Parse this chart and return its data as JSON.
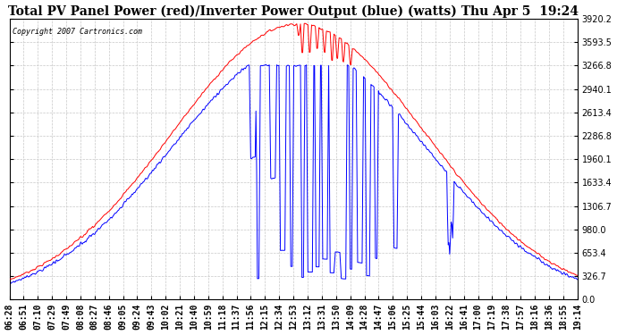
{
  "title": "Total PV Panel Power (red)/Inverter Power Output (blue) (watts) Thu Apr 5  19:24",
  "copyright": "Copyright 2007 Cartronics.com",
  "ymin": 0.0,
  "ymax": 3920.2,
  "yticks": [
    0.0,
    326.7,
    653.4,
    980.0,
    1306.7,
    1633.4,
    1960.1,
    2286.8,
    2613.4,
    2940.1,
    3266.8,
    3593.5,
    3920.2
  ],
  "xtick_labels": [
    "06:28",
    "06:51",
    "07:10",
    "07:29",
    "07:49",
    "08:08",
    "08:27",
    "08:46",
    "09:05",
    "09:24",
    "09:43",
    "10:02",
    "10:21",
    "10:40",
    "10:59",
    "11:18",
    "11:37",
    "11:56",
    "12:15",
    "12:34",
    "12:53",
    "13:12",
    "13:31",
    "13:50",
    "14:09",
    "14:28",
    "14:47",
    "15:06",
    "15:25",
    "15:44",
    "16:03",
    "16:22",
    "16:41",
    "17:00",
    "17:19",
    "17:38",
    "17:57",
    "18:16",
    "18:36",
    "18:55",
    "19:14"
  ],
  "background_color": "#ffffff",
  "grid_color": "#c8c8c8",
  "line_red": "#ff0000",
  "line_blue": "#0000ff",
  "title_fontsize": 10,
  "tick_fontsize": 7
}
